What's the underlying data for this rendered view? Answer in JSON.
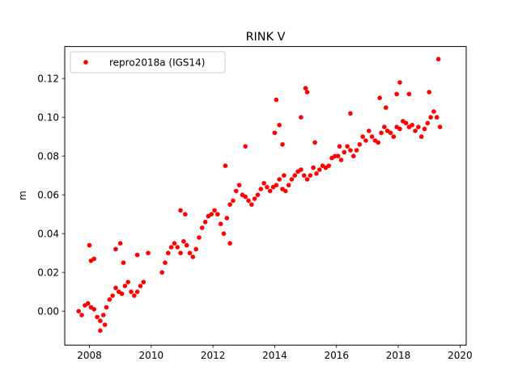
{
  "chart_data": {
    "type": "scatter",
    "title": "RINK V",
    "xlabel": "",
    "ylabel": "m",
    "xlim": [
      2007.2,
      2020.2
    ],
    "ylim": [
      -0.0175,
      0.1365
    ],
    "x_ticks": [
      2008,
      2010,
      2012,
      2014,
      2016,
      2018,
      2020
    ],
    "x_tick_labels": [
      "2008",
      "2010",
      "2012",
      "2014",
      "2016",
      "2018",
      "2020"
    ],
    "y_ticks": [
      0.0,
      0.02,
      0.04,
      0.06,
      0.08,
      0.1,
      0.12
    ],
    "y_tick_labels": [
      "0.00",
      "0.02",
      "0.04",
      "0.06",
      "0.08",
      "0.10",
      "0.12"
    ],
    "grid": false,
    "legend": {
      "position": "top-left"
    },
    "series": [
      {
        "name": "repro2018a (IGS14)",
        "color": "#ff0000",
        "marker": "circle",
        "x": [
          2007.65,
          2007.75,
          2007.85,
          2007.95,
          2008.05,
          2008.15,
          2008.25,
          2008.35,
          2008.45,
          2008.55,
          2008.65,
          2008.75,
          2008.85,
          2008.95,
          2009.05,
          2009.15,
          2009.25,
          2009.35,
          2009.45,
          2009.55,
          2009.65,
          2009.75,
          2010.35,
          2010.45,
          2010.55,
          2010.65,
          2010.75,
          2010.85,
          2010.95,
          2011.05,
          2011.15,
          2011.25,
          2011.35,
          2011.45,
          2011.55,
          2011.65,
          2011.75,
          2011.85,
          2011.95,
          2012.05,
          2012.15,
          2012.25,
          2012.35,
          2012.45,
          2012.55,
          2012.65,
          2012.75,
          2012.85,
          2012.95,
          2013.05,
          2013.15,
          2013.25,
          2013.35,
          2013.45,
          2013.55,
          2013.65,
          2013.75,
          2013.85,
          2013.95,
          2014.05,
          2014.15,
          2014.25,
          2014.35,
          2014.45,
          2014.55,
          2014.65,
          2014.75,
          2014.85,
          2014.95,
          2015.05,
          2015.15,
          2015.25,
          2015.35,
          2015.45,
          2015.55,
          2015.65,
          2015.75,
          2015.85,
          2015.95,
          2016.05,
          2016.15,
          2016.25,
          2016.35,
          2016.45,
          2016.55,
          2016.65,
          2016.75,
          2016.85,
          2016.95,
          2017.05,
          2017.15,
          2017.25,
          2017.35,
          2017.45,
          2017.55,
          2017.65,
          2017.75,
          2017.85,
          2017.95,
          2018.05,
          2018.15,
          2018.25,
          2018.35,
          2018.45,
          2018.55,
          2018.65,
          2018.75,
          2018.85,
          2018.95,
          2019.05,
          2019.15,
          2019.25,
          2019.35,
          2008.0,
          2008.05,
          2008.15,
          2008.85,
          2009.0,
          2009.1,
          2009.55,
          2009.9,
          2010.95,
          2011.1,
          2012.4,
          2013.05,
          2014.0,
          2014.05,
          2014.15,
          2014.25,
          2014.3,
          2014.85,
          2015.0,
          2015.05,
          2015.3,
          2016.1,
          2016.45,
          2017.4,
          2017.6,
          2017.95,
          2018.05,
          2018.35,
          2019.0,
          2019.3,
          2008.35,
          2008.5,
          2012.55
        ],
        "y": [
          0.0,
          -0.002,
          0.003,
          0.004,
          0.002,
          0.001,
          -0.003,
          -0.005,
          -0.002,
          0.002,
          0.006,
          0.008,
          0.012,
          0.01,
          0.009,
          0.013,
          0.015,
          0.01,
          0.008,
          0.01,
          0.013,
          0.015,
          0.02,
          0.025,
          0.03,
          0.033,
          0.035,
          0.033,
          0.03,
          0.036,
          0.034,
          0.03,
          0.028,
          0.032,
          0.038,
          0.043,
          0.046,
          0.049,
          0.05,
          0.052,
          0.05,
          0.045,
          0.04,
          0.048,
          0.055,
          0.057,
          0.062,
          0.065,
          0.06,
          0.059,
          0.057,
          0.055,
          0.058,
          0.06,
          0.063,
          0.066,
          0.064,
          0.062,
          0.064,
          0.065,
          0.068,
          0.063,
          0.062,
          0.065,
          0.068,
          0.07,
          0.072,
          0.073,
          0.07,
          0.068,
          0.07,
          0.074,
          0.071,
          0.073,
          0.075,
          0.074,
          0.075,
          0.079,
          0.08,
          0.08,
          0.078,
          0.082,
          0.085,
          0.083,
          0.08,
          0.083,
          0.086,
          0.09,
          0.088,
          0.093,
          0.09,
          0.088,
          0.087,
          0.092,
          0.095,
          0.093,
          0.092,
          0.09,
          0.095,
          0.094,
          0.098,
          0.097,
          0.095,
          0.096,
          0.093,
          0.095,
          0.09,
          0.094,
          0.097,
          0.1,
          0.103,
          0.1,
          0.095,
          0.034,
          0.026,
          0.027,
          0.032,
          0.035,
          0.025,
          0.029,
          0.03,
          0.052,
          0.05,
          0.075,
          0.085,
          0.092,
          0.109,
          0.096,
          0.086,
          0.07,
          0.1,
          0.115,
          0.113,
          0.087,
          0.085,
          0.102,
          0.11,
          0.105,
          0.112,
          0.118,
          0.112,
          0.113,
          0.13,
          -0.01,
          -0.007,
          0.035
        ]
      }
    ]
  }
}
